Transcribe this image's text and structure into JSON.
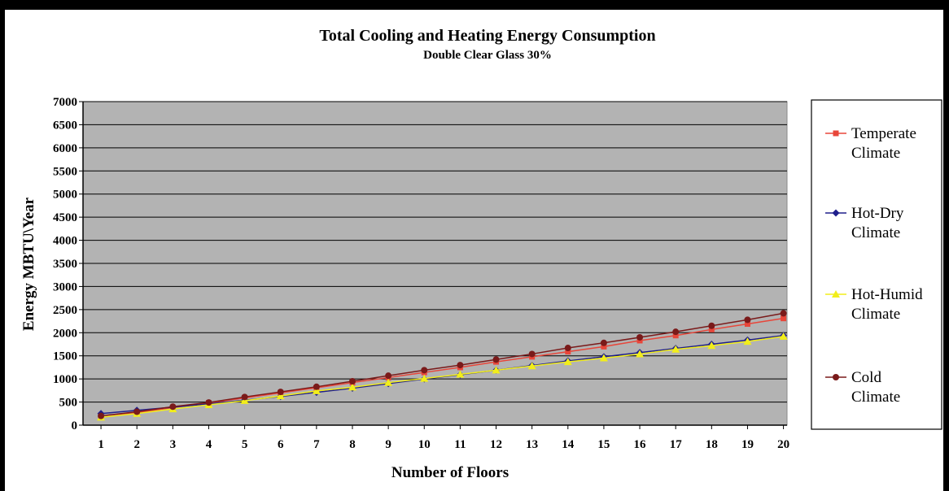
{
  "chart_data": {
    "type": "line",
    "title": "Total Cooling and Heating Energy Consumption",
    "subtitle": "Double Clear Glass 30%",
    "xlabel": "Number of Floors",
    "ylabel": "Energy MBTU\\Year",
    "x": [
      1,
      2,
      3,
      4,
      5,
      6,
      7,
      8,
      9,
      10,
      11,
      12,
      13,
      14,
      15,
      16,
      17,
      18,
      19,
      20
    ],
    "x_tick_labels": [
      "1",
      "2",
      "3",
      "4",
      "5",
      "6",
      "7",
      "8",
      "9",
      "10",
      "11",
      "12",
      "13",
      "14",
      "15",
      "16",
      "17",
      "18",
      "19",
      "20"
    ],
    "ylim": [
      0,
      7000
    ],
    "y_ticks": [
      0,
      500,
      1000,
      1500,
      2000,
      2500,
      3000,
      3500,
      4000,
      4500,
      5000,
      5500,
      6000,
      6500,
      7000
    ],
    "y_tick_labels": [
      "0",
      "500",
      "1000",
      "1500",
      "2000",
      "2500",
      "3000",
      "3500",
      "4000",
      "4500",
      "5000",
      "5500",
      "6000",
      "6500",
      "7000"
    ],
    "grid": true,
    "plot_background": "#b3b3b3",
    "legend_position": "right",
    "series": [
      {
        "name": "Temperate Climate",
        "legend_lines": [
          "Temperate",
          "Climate"
        ],
        "color": "#e8463a",
        "marker": "square",
        "values": [
          170,
          270,
          380,
          480,
          590,
          700,
          810,
          920,
          1030,
          1140,
          1250,
          1370,
          1480,
          1590,
          1700,
          1830,
          1940,
          2070,
          2190,
          2310
        ]
      },
      {
        "name": "Hot-Dry Climate",
        "legend_lines": [
          "Hot-Dry",
          "Climate"
        ],
        "color": "#1f1f8c",
        "marker": "diamond",
        "values": [
          250,
          320,
          390,
          460,
          540,
          620,
          710,
          800,
          900,
          1000,
          1090,
          1190,
          1290,
          1390,
          1480,
          1570,
          1660,
          1750,
          1840,
          1940
        ]
      },
      {
        "name": "Hot-Humid Climate",
        "legend_lines": [
          "Hot-Humid",
          "Climate"
        ],
        "color": "#f2ee1a",
        "marker": "triangle",
        "values": [
          170,
          250,
          350,
          440,
          530,
          630,
          740,
          820,
          920,
          1010,
          1100,
          1190,
          1280,
          1370,
          1450,
          1540,
          1640,
          1720,
          1810,
          1920
        ]
      },
      {
        "name": "Cold Climate",
        "legend_lines": [
          "Cold",
          "Climate"
        ],
        "color": "#7a1a1a",
        "marker": "circle",
        "values": [
          200,
          290,
          400,
          490,
          610,
          720,
          830,
          950,
          1070,
          1190,
          1300,
          1420,
          1540,
          1670,
          1780,
          1900,
          2020,
          2150,
          2280,
          2420
        ]
      }
    ]
  }
}
